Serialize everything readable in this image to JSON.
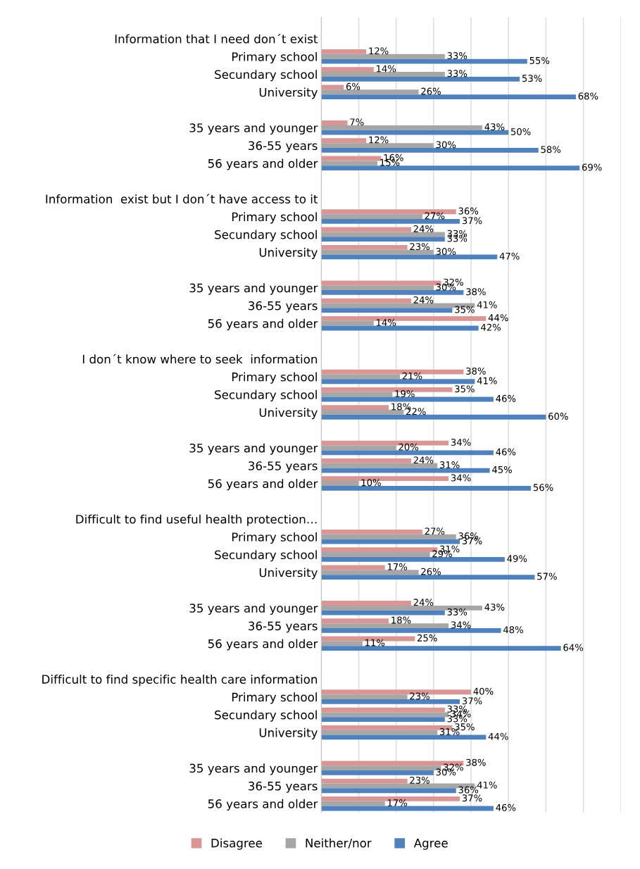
{
  "chart_data": {
    "type": "bar",
    "orientation": "horizontal",
    "categories": [
      "Information that I need don´t exist",
      "Primary school",
      "Secundary school",
      "University",
      null,
      "35 years and younger",
      "36-55 years",
      "56 years and older",
      null,
      "Information  exist but I don´t have access to it",
      "Primary school",
      "Secundary school",
      "University",
      null,
      "35 years and younger",
      "36-55 years",
      "56 years and older",
      null,
      "I don´t know where to seek  information",
      "Primary school",
      "Secundary school",
      "University",
      null,
      "35 years and younger",
      "36-55 years",
      "56 years and older",
      null,
      "Difficult to find useful health protection…",
      "Primary school",
      "Secundary school",
      "University",
      null,
      "35 years and younger",
      "36-55 years",
      "56 years and older",
      null,
      "Difficult to find specific health care information",
      "Primary school",
      "Secundary school",
      "University",
      null,
      "35 years and younger",
      "36-55 years",
      "56 years and older"
    ],
    "series": [
      {
        "name": "Disagree",
        "color": "#d99694",
        "values": [
          null,
          12,
          14,
          6,
          null,
          7,
          12,
          16,
          null,
          null,
          36,
          24,
          23,
          null,
          32,
          24,
          44,
          null,
          null,
          38,
          35,
          18,
          null,
          34,
          24,
          34,
          null,
          null,
          27,
          31,
          17,
          null,
          24,
          18,
          25,
          null,
          null,
          40,
          33,
          35,
          null,
          38,
          23,
          37
        ],
        "value_labels": [
          null,
          "12%",
          "14%",
          "6%",
          null,
          "7%",
          "12%",
          "16%",
          null,
          null,
          "36%",
          "24%",
          "23%",
          null,
          "32%",
          "24%",
          "44%",
          null,
          null,
          "38%",
          "35%",
          "18%",
          null,
          "34%",
          "24%",
          "34%",
          null,
          null,
          "27%",
          "31%",
          "17%",
          null,
          "24%",
          "18%",
          "25%",
          null,
          null,
          "40%",
          "33%",
          "35%",
          null,
          "38%",
          "23%",
          "37%"
        ]
      },
      {
        "name": "Neither/nor",
        "color": "#a6a6a6",
        "values": [
          null,
          33,
          33,
          26,
          null,
          43,
          30,
          15,
          null,
          null,
          27,
          33,
          30,
          null,
          30,
          41,
          14,
          null,
          null,
          21,
          19,
          22,
          null,
          20,
          31,
          10,
          null,
          null,
          36,
          29,
          26,
          null,
          43,
          34,
          11,
          null,
          null,
          23,
          34,
          31,
          null,
          32,
          41,
          17
        ],
        "value_labels": [
          null,
          "33%",
          "33%",
          "26%",
          null,
          "43%",
          "30%",
          "15%",
          null,
          null,
          "27%",
          "33%",
          "30%",
          null,
          "30%",
          "41%",
          "14%",
          null,
          null,
          "21%",
          "19%",
          "22%",
          null,
          "20%",
          "31%",
          "10%",
          null,
          null,
          "36%",
          "29%",
          "26%",
          null,
          "43%",
          "34%",
          "11%",
          null,
          null,
          "23%",
          "34%",
          "31%",
          null,
          "32%",
          "41%",
          "17%"
        ]
      },
      {
        "name": "Agree",
        "color": "#4f81bd",
        "values": [
          null,
          55,
          53,
          68,
          null,
          50,
          58,
          69,
          null,
          null,
          37,
          33,
          47,
          null,
          38,
          35,
          42,
          null,
          null,
          41,
          46,
          60,
          null,
          46,
          45,
          56,
          null,
          null,
          37,
          49,
          57,
          null,
          33,
          48,
          64,
          null,
          null,
          37,
          33,
          44,
          null,
          30,
          36,
          46
        ],
        "value_labels": [
          null,
          "55%",
          "53%",
          "68%",
          null,
          "50%",
          "58%",
          "69%",
          null,
          null,
          "37%",
          "33%",
          "47%",
          null,
          "38%",
          "35%",
          "42%",
          null,
          null,
          "41%",
          "46%",
          "60%",
          null,
          "46%",
          "45%",
          "56%",
          null,
          null,
          "37%",
          "49%",
          "57%",
          null,
          "33%",
          "48%",
          "64%",
          null,
          null,
          "37%",
          "33%",
          "44%",
          null,
          "30%",
          "36%",
          "46%"
        ]
      }
    ],
    "xlim": [
      0,
      80
    ],
    "xticks": [
      {
        "value": 0,
        "label": null
      },
      {
        "value": 10,
        "label": null
      },
      {
        "value": 20,
        "label": null
      },
      {
        "value": 30,
        "label": null
      },
      {
        "value": 40,
        "label": null
      },
      {
        "value": 50,
        "label": null
      },
      {
        "value": 60,
        "label": null
      },
      {
        "value": 70,
        "label": null
      },
      {
        "value": 80,
        "label": null
      }
    ],
    "grid": "x",
    "legend": "bottom",
    "tick_labels": "y"
  }
}
